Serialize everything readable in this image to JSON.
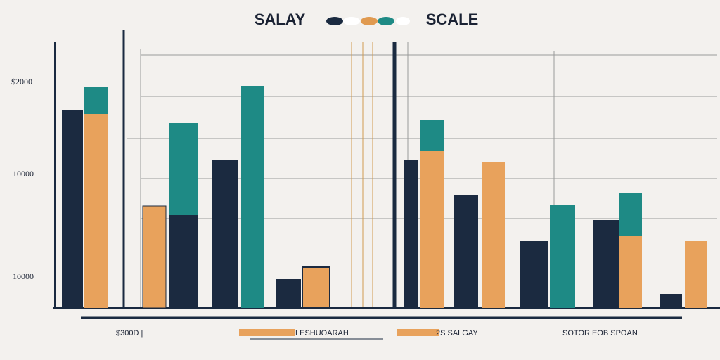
{
  "header": {
    "title_left": "SALAY",
    "title_right": "SCALE"
  },
  "y_labels": [
    "$2000",
    "10000",
    "10000"
  ],
  "x_labels": [
    "$300D |",
    "LESHUOARAH",
    "2S SALGAY",
    "SOTOR EOB SPOAN"
  ]
}
